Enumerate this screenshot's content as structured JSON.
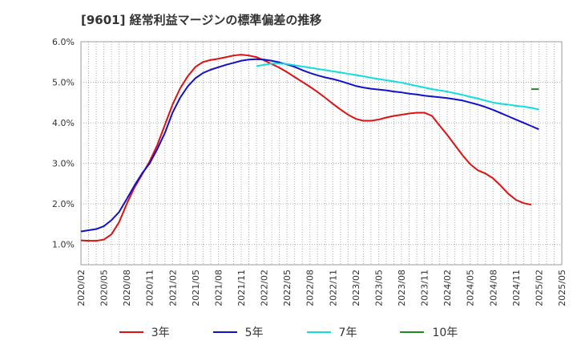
{
  "header": {
    "title": "[9601]  経常利益マージンの標準偏差の推移"
  },
  "chart_data": {
    "type": "line",
    "title": "[9601]  経常利益マージンの標準偏差の推移",
    "xlabel": "",
    "ylabel": "",
    "x_ticks": [
      "2020/02",
      "2020/05",
      "2020/08",
      "2020/11",
      "2021/02",
      "2021/05",
      "2021/08",
      "2021/11",
      "2022/02",
      "2022/05",
      "2022/08",
      "2022/11",
      "2023/02",
      "2023/05",
      "2023/08",
      "2023/11",
      "2024/02",
      "2024/05",
      "2024/08",
      "2024/11",
      "2025/02",
      "2025/05"
    ],
    "y_ticks": [
      "1.0%",
      "2.0%",
      "3.0%",
      "4.0%",
      "5.0%",
      "6.0%"
    ],
    "ylim": [
      0.5,
      6.0
    ],
    "y_unit": "%",
    "grid": true,
    "legend_position": "bottom",
    "series": [
      {
        "name": "3年",
        "color": "#dd1111",
        "points": [
          [
            "2020/02",
            1.1
          ],
          [
            "2020/03",
            1.09
          ],
          [
            "2020/04",
            1.09
          ],
          [
            "2020/05",
            1.12
          ],
          [
            "2020/06",
            1.25
          ],
          [
            "2020/07",
            1.55
          ],
          [
            "2020/08",
            2.0
          ],
          [
            "2020/09",
            2.4
          ],
          [
            "2020/10",
            2.72
          ],
          [
            "2020/11",
            3.05
          ],
          [
            "2020/12",
            3.45
          ],
          [
            "2021/01",
            3.95
          ],
          [
            "2021/02",
            4.45
          ],
          [
            "2021/03",
            4.85
          ],
          [
            "2021/04",
            5.15
          ],
          [
            "2021/05",
            5.38
          ],
          [
            "2021/06",
            5.5
          ],
          [
            "2021/07",
            5.55
          ],
          [
            "2021/08",
            5.58
          ],
          [
            "2021/09",
            5.62
          ],
          [
            "2021/10",
            5.66
          ],
          [
            "2021/11",
            5.68
          ],
          [
            "2021/12",
            5.66
          ],
          [
            "2022/01",
            5.62
          ],
          [
            "2022/02",
            5.54
          ],
          [
            "2022/03",
            5.45
          ],
          [
            "2022/04",
            5.36
          ],
          [
            "2022/05",
            5.25
          ],
          [
            "2022/06",
            5.13
          ],
          [
            "2022/07",
            5.01
          ],
          [
            "2022/08",
            4.89
          ],
          [
            "2022/09",
            4.76
          ],
          [
            "2022/10",
            4.62
          ],
          [
            "2022/11",
            4.47
          ],
          [
            "2022/12",
            4.33
          ],
          [
            "2023/01",
            4.2
          ],
          [
            "2023/02",
            4.1
          ],
          [
            "2023/03",
            4.05
          ],
          [
            "2023/04",
            4.05
          ],
          [
            "2023/05",
            4.08
          ],
          [
            "2023/06",
            4.13
          ],
          [
            "2023/07",
            4.17
          ],
          [
            "2023/08",
            4.2
          ],
          [
            "2023/09",
            4.23
          ],
          [
            "2023/10",
            4.25
          ],
          [
            "2023/11",
            4.25
          ],
          [
            "2023/12",
            4.17
          ],
          [
            "2024/01",
            3.93
          ],
          [
            "2024/02",
            3.7
          ],
          [
            "2024/03",
            3.45
          ],
          [
            "2024/04",
            3.2
          ],
          [
            "2024/05",
            2.98
          ],
          [
            "2024/06",
            2.83
          ],
          [
            "2024/07",
            2.75
          ],
          [
            "2024/08",
            2.63
          ],
          [
            "2024/09",
            2.45
          ],
          [
            "2024/10",
            2.25
          ],
          [
            "2024/11",
            2.1
          ],
          [
            "2024/12",
            2.02
          ],
          [
            "2025/01",
            1.98
          ]
        ]
      },
      {
        "name": "5年",
        "color": "#1111cc",
        "points": [
          [
            "2020/02",
            1.32
          ],
          [
            "2020/03",
            1.35
          ],
          [
            "2020/04",
            1.38
          ],
          [
            "2020/05",
            1.45
          ],
          [
            "2020/06",
            1.6
          ],
          [
            "2020/07",
            1.8
          ],
          [
            "2020/08",
            2.12
          ],
          [
            "2020/09",
            2.45
          ],
          [
            "2020/10",
            2.75
          ],
          [
            "2020/11",
            3.0
          ],
          [
            "2020/12",
            3.35
          ],
          [
            "2021/01",
            3.75
          ],
          [
            "2021/02",
            4.25
          ],
          [
            "2021/03",
            4.62
          ],
          [
            "2021/04",
            4.9
          ],
          [
            "2021/05",
            5.1
          ],
          [
            "2021/06",
            5.23
          ],
          [
            "2021/07",
            5.31
          ],
          [
            "2021/08",
            5.37
          ],
          [
            "2021/09",
            5.43
          ],
          [
            "2021/10",
            5.48
          ],
          [
            "2021/11",
            5.53
          ],
          [
            "2021/12",
            5.56
          ],
          [
            "2022/01",
            5.57
          ],
          [
            "2022/02",
            5.56
          ],
          [
            "2022/03",
            5.53
          ],
          [
            "2022/04",
            5.49
          ],
          [
            "2022/05",
            5.44
          ],
          [
            "2022/06",
            5.38
          ],
          [
            "2022/07",
            5.3
          ],
          [
            "2022/08",
            5.23
          ],
          [
            "2022/09",
            5.17
          ],
          [
            "2022/10",
            5.12
          ],
          [
            "2022/11",
            5.08
          ],
          [
            "2022/12",
            5.03
          ],
          [
            "2023/01",
            4.97
          ],
          [
            "2023/02",
            4.91
          ],
          [
            "2023/03",
            4.87
          ],
          [
            "2023/04",
            4.84
          ],
          [
            "2023/05",
            4.82
          ],
          [
            "2023/06",
            4.8
          ],
          [
            "2023/07",
            4.77
          ],
          [
            "2023/08",
            4.75
          ],
          [
            "2023/09",
            4.72
          ],
          [
            "2023/10",
            4.7
          ],
          [
            "2023/11",
            4.67
          ],
          [
            "2023/12",
            4.65
          ],
          [
            "2024/01",
            4.63
          ],
          [
            "2024/02",
            4.61
          ],
          [
            "2024/03",
            4.58
          ],
          [
            "2024/04",
            4.55
          ],
          [
            "2024/05",
            4.5
          ],
          [
            "2024/06",
            4.45
          ],
          [
            "2024/07",
            4.39
          ],
          [
            "2024/08",
            4.32
          ],
          [
            "2024/09",
            4.24
          ],
          [
            "2024/10",
            4.16
          ],
          [
            "2024/11",
            4.08
          ],
          [
            "2024/12",
            4.0
          ],
          [
            "2025/01",
            3.92
          ],
          [
            "2025/02",
            3.84
          ]
        ]
      },
      {
        "name": "7年",
        "color": "#11dddd",
        "points": [
          [
            "2022/01",
            5.4
          ],
          [
            "2022/02",
            5.43
          ],
          [
            "2022/03",
            5.46
          ],
          [
            "2022/04",
            5.46
          ],
          [
            "2022/05",
            5.45
          ],
          [
            "2022/06",
            5.42
          ],
          [
            "2022/07",
            5.39
          ],
          [
            "2022/08",
            5.36
          ],
          [
            "2022/09",
            5.33
          ],
          [
            "2022/10",
            5.3
          ],
          [
            "2022/11",
            5.27
          ],
          [
            "2022/12",
            5.24
          ],
          [
            "2023/01",
            5.21
          ],
          [
            "2023/02",
            5.18
          ],
          [
            "2023/03",
            5.15
          ],
          [
            "2023/04",
            5.11
          ],
          [
            "2023/05",
            5.08
          ],
          [
            "2023/06",
            5.05
          ],
          [
            "2023/07",
            5.02
          ],
          [
            "2023/08",
            4.99
          ],
          [
            "2023/09",
            4.95
          ],
          [
            "2023/10",
            4.91
          ],
          [
            "2023/11",
            4.87
          ],
          [
            "2023/12",
            4.83
          ],
          [
            "2024/01",
            4.8
          ],
          [
            "2024/02",
            4.77
          ],
          [
            "2024/03",
            4.73
          ],
          [
            "2024/04",
            4.69
          ],
          [
            "2024/05",
            4.64
          ],
          [
            "2024/06",
            4.6
          ],
          [
            "2024/07",
            4.55
          ],
          [
            "2024/08",
            4.5
          ],
          [
            "2024/09",
            4.47
          ],
          [
            "2024/10",
            4.45
          ],
          [
            "2024/11",
            4.42
          ],
          [
            "2024/12",
            4.4
          ],
          [
            "2025/01",
            4.37
          ],
          [
            "2025/02",
            4.33
          ]
        ]
      },
      {
        "name": "10年",
        "color": "#228822",
        "points": [
          [
            "2025/01",
            4.83
          ],
          [
            "2025/02",
            4.83
          ]
        ]
      }
    ]
  }
}
